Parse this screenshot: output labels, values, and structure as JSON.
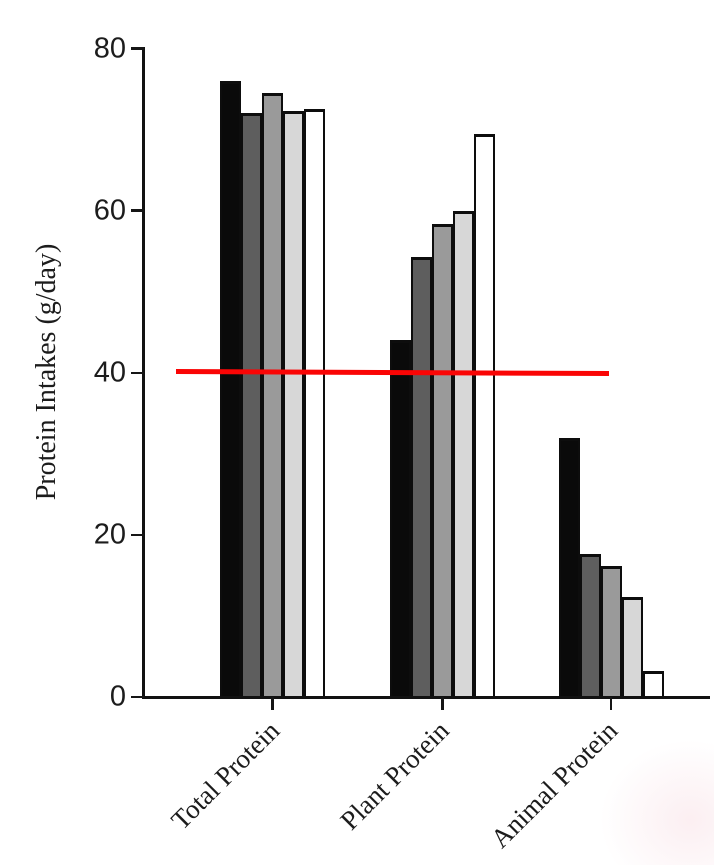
{
  "figure": {
    "background": "#ffffff"
  },
  "chart_data": {
    "type": "bar",
    "title": "",
    "xlabel": "",
    "ylabel": "Protein Intakes (g/day)",
    "categories": [
      "Total Protein",
      "Plant Protein",
      "Animal Protein"
    ],
    "series": [
      {
        "name": "black",
        "fill": "#0a0a0a",
        "values": [
          76.0,
          44.0,
          32.0
        ]
      },
      {
        "name": "dark-gray",
        "fill": "#5e5e5e",
        "values": [
          72.0,
          54.3,
          17.7
        ]
      },
      {
        "name": "medium-gray",
        "fill": "#9a9a9a",
        "values": [
          74.5,
          58.4,
          16.2
        ]
      },
      {
        "name": "light-gray",
        "fill": "#d7d7d7",
        "values": [
          72.3,
          60.0,
          12.3
        ]
      },
      {
        "name": "white",
        "fill": "#ffffff",
        "values": [
          72.6,
          69.4,
          3.2
        ]
      }
    ],
    "bar_outline_color": "#0d0d0d",
    "yticks": [
      0,
      20,
      40,
      60,
      80
    ],
    "ylim": [
      0,
      80
    ],
    "grid": false,
    "legend": "none",
    "reference_line": {
      "value": 40,
      "color": "#fa0505"
    }
  }
}
